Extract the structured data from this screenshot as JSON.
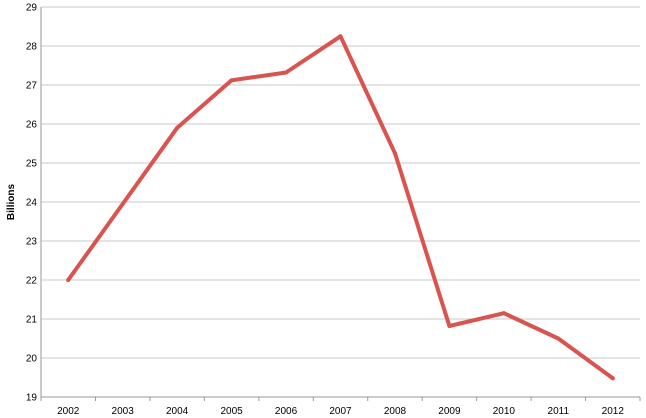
{
  "chart_data": {
    "type": "line",
    "title": "",
    "xlabel": "",
    "ylabel": "Billions",
    "x": [
      "2002",
      "2003",
      "2004",
      "2005",
      "2006",
      "2007",
      "2008",
      "2009",
      "2010",
      "2011",
      "2012"
    ],
    "series": [
      {
        "values": [
          22.0,
          23.95,
          25.9,
          27.12,
          27.32,
          28.25,
          25.25,
          20.82,
          21.15,
          20.5,
          19.48
        ],
        "color": "#d9534f"
      }
    ],
    "yticks": [
      "19",
      "20",
      "21",
      "22",
      "23",
      "24",
      "25",
      "26",
      "27",
      "28",
      "29"
    ],
    "ylim": [
      19,
      29
    ],
    "grid": true,
    "legend": "none"
  }
}
